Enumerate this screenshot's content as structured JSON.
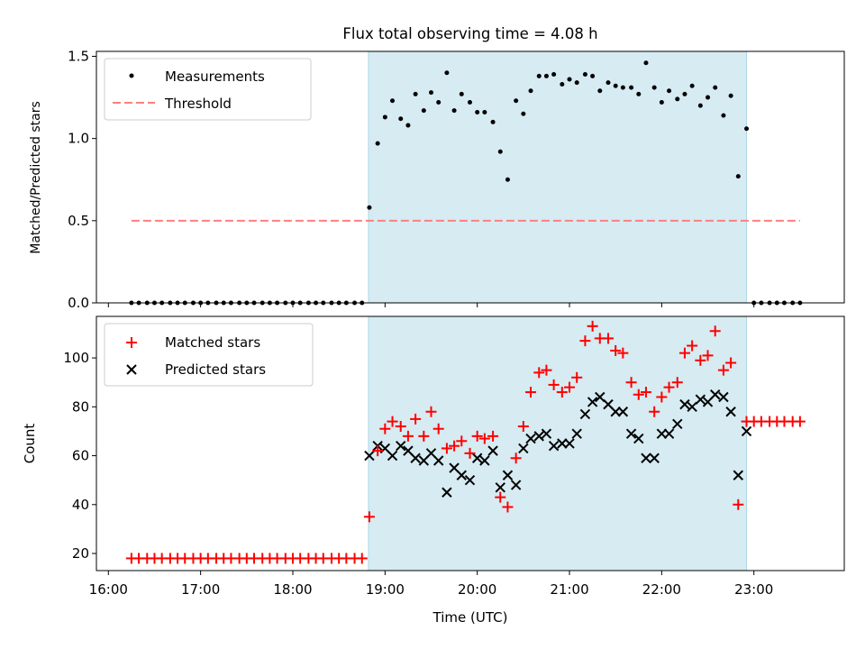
{
  "chart_data": {
    "type": "scatter",
    "title": "Flux total observing time = 4.08 h",
    "xlabel": "Time (UTC)",
    "x_ticks": [
      "16:00",
      "17:00",
      "18:00",
      "19:00",
      "20:00",
      "21:00",
      "22:00",
      "23:00"
    ],
    "x_tick_hours": [
      16,
      17,
      18,
      19,
      20,
      21,
      22,
      23
    ],
    "xlim": [
      15.87,
      23.98
    ],
    "observing_window": [
      18.82,
      22.92
    ],
    "colors": {
      "window": "#add8e6",
      "measurement": "#000000",
      "threshold": "#ff7f7f",
      "matched": "#ff0000",
      "predicted": "#000000"
    },
    "panels": [
      {
        "ylabel": "Matched/Predicted stars",
        "ylim": [
          0,
          1.53
        ],
        "yticks": [
          0.0,
          0.5,
          1.0,
          1.5
        ],
        "ytick_labels": [
          "0.0",
          "0.5",
          "1.0",
          "1.5"
        ],
        "legend": [
          {
            "label": "Measurements",
            "marker": "dot"
          },
          {
            "label": "Threshold",
            "marker": "dashed"
          }
        ],
        "threshold": {
          "value": 0.5,
          "x_range": [
            16.25,
            23.5
          ]
        },
        "series": [
          {
            "name": "Measurements",
            "x": [
              16.25,
              16.33,
              16.42,
              16.5,
              16.58,
              16.67,
              16.75,
              16.83,
              16.92,
              17.0,
              17.08,
              17.17,
              17.25,
              17.33,
              17.42,
              17.5,
              17.58,
              17.67,
              17.75,
              17.83,
              17.92,
              18.0,
              18.08,
              18.17,
              18.25,
              18.33,
              18.42,
              18.5,
              18.58,
              18.67,
              18.75,
              18.83,
              18.92,
              19.0,
              19.08,
              19.17,
              19.25,
              19.33,
              19.42,
              19.5,
              19.58,
              19.67,
              19.75,
              19.83,
              19.92,
              20.0,
              20.08,
              20.17,
              20.25,
              20.33,
              20.42,
              20.5,
              20.58,
              20.67,
              20.75,
              20.83,
              20.92,
              21.0,
              21.08,
              21.17,
              21.25,
              21.33,
              21.42,
              21.5,
              21.58,
              21.67,
              21.75,
              21.83,
              21.92,
              22.0,
              22.08,
              22.17,
              22.25,
              22.33,
              22.42,
              22.5,
              22.58,
              22.67,
              22.75,
              22.83,
              22.92,
              23.0,
              23.08,
              23.17,
              23.25,
              23.33,
              23.42,
              23.5
            ],
            "y": [
              0,
              0,
              0,
              0,
              0,
              0,
              0,
              0,
              0,
              0,
              0,
              0,
              0,
              0,
              0,
              0,
              0,
              0,
              0,
              0,
              0,
              0,
              0,
              0,
              0,
              0,
              0,
              0,
              0,
              0,
              0,
              0.58,
              0.97,
              1.13,
              1.23,
              1.12,
              1.08,
              1.27,
              1.17,
              1.28,
              1.22,
              1.4,
              1.17,
              1.27,
              1.22,
              1.16,
              1.16,
              1.1,
              0.92,
              0.75,
              1.23,
              1.15,
              1.29,
              1.38,
              1.38,
              1.39,
              1.33,
              1.36,
              1.34,
              1.39,
              1.38,
              1.29,
              1.34,
              1.32,
              1.31,
              1.31,
              1.27,
              1.46,
              1.31,
              1.22,
              1.29,
              1.24,
              1.27,
              1.32,
              1.2,
              1.25,
              1.31,
              1.14,
              1.26,
              0.77,
              1.06,
              0,
              0,
              0,
              0,
              0,
              0,
              0
            ]
          }
        ]
      },
      {
        "ylabel": "Count",
        "ylim": [
          13,
          117
        ],
        "yticks": [
          20,
          40,
          60,
          80,
          100
        ],
        "ytick_labels": [
          "20",
          "40",
          "60",
          "80",
          "100"
        ],
        "legend": [
          {
            "label": "Matched stars",
            "marker": "plus"
          },
          {
            "label": "Predicted stars",
            "marker": "cross"
          }
        ],
        "series": [
          {
            "name": "Matched stars",
            "x": [
              16.25,
              16.33,
              16.42,
              16.5,
              16.58,
              16.67,
              16.75,
              16.83,
              16.92,
              17.0,
              17.08,
              17.17,
              17.25,
              17.33,
              17.42,
              17.5,
              17.58,
              17.67,
              17.75,
              17.83,
              17.92,
              18.0,
              18.08,
              18.17,
              18.25,
              18.33,
              18.42,
              18.5,
              18.58,
              18.67,
              18.75,
              18.83,
              18.92,
              19.0,
              19.08,
              19.17,
              19.25,
              19.33,
              19.42,
              19.5,
              19.58,
              19.67,
              19.75,
              19.83,
              19.92,
              20.0,
              20.08,
              20.17,
              20.25,
              20.33,
              20.42,
              20.5,
              20.58,
              20.67,
              20.75,
              20.83,
              20.92,
              21.0,
              21.08,
              21.17,
              21.25,
              21.33,
              21.42,
              21.5,
              21.58,
              21.67,
              21.75,
              21.83,
              21.92,
              22.0,
              22.08,
              22.17,
              22.25,
              22.33,
              22.42,
              22.5,
              22.58,
              22.67,
              22.75,
              22.83,
              22.92,
              23.0,
              23.08,
              23.17,
              23.25,
              23.33,
              23.42,
              23.5
            ],
            "y": [
              18,
              18,
              18,
              18,
              18,
              18,
              18,
              18,
              18,
              18,
              18,
              18,
              18,
              18,
              18,
              18,
              18,
              18,
              18,
              18,
              18,
              18,
              18,
              18,
              18,
              18,
              18,
              18,
              18,
              18,
              18,
              35,
              62,
              71,
              74,
              72,
              68,
              75,
              68,
              78,
              71,
              63,
              64,
              66,
              61,
              68,
              67,
              68,
              43,
              39,
              59,
              72,
              86,
              94,
              95,
              89,
              86,
              88,
              92,
              107,
              113,
              108,
              108,
              103,
              102,
              90,
              85,
              86,
              78,
              84,
              88,
              90,
              102,
              105,
              99,
              101,
              111,
              95,
              98,
              40,
              74,
              74,
              74,
              74,
              74,
              74,
              74,
              74
            ]
          },
          {
            "name": "Predicted stars",
            "x": [
              18.83,
              18.92,
              19.0,
              19.08,
              19.17,
              19.25,
              19.33,
              19.42,
              19.5,
              19.58,
              19.67,
              19.75,
              19.83,
              19.92,
              20.0,
              20.08,
              20.17,
              20.25,
              20.33,
              20.42,
              20.5,
              20.58,
              20.67,
              20.75,
              20.83,
              20.92,
              21.0,
              21.08,
              21.17,
              21.25,
              21.33,
              21.42,
              21.5,
              21.58,
              21.67,
              21.75,
              21.83,
              21.92,
              22.0,
              22.08,
              22.17,
              22.25,
              22.33,
              22.42,
              22.5,
              22.58,
              22.67,
              22.75,
              22.83,
              22.92
            ],
            "y": [
              60,
              64,
              63,
              60,
              64,
              62,
              59,
              58,
              61,
              58,
              45,
              55,
              52,
              50,
              59,
              58,
              62,
              47,
              52,
              48,
              63,
              67,
              68,
              69,
              64,
              65,
              65,
              69,
              77,
              82,
              84,
              81,
              78,
              78,
              69,
              67,
              59,
              59,
              69,
              69,
              73,
              81,
              80,
              83,
              82,
              85,
              84,
              78,
              52,
              70
            ]
          }
        ]
      }
    ]
  }
}
